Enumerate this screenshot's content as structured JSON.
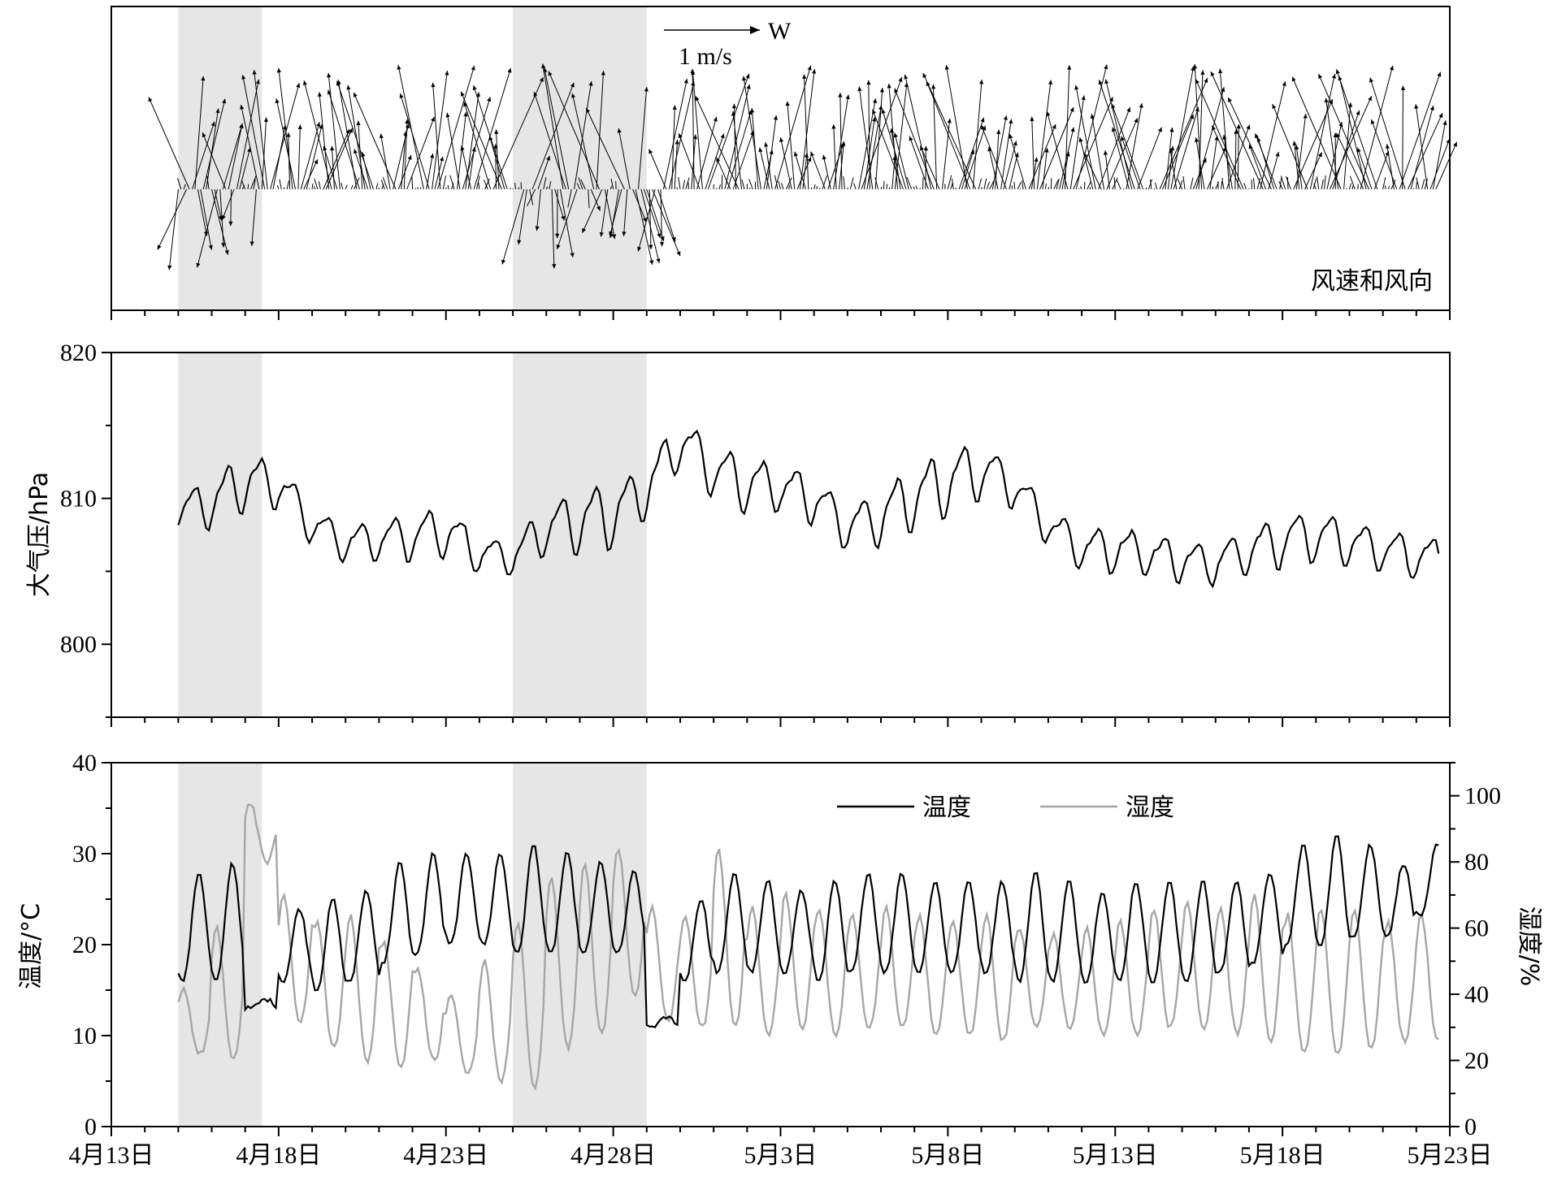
{
  "chart_data": [
    {
      "type": "quiver",
      "annotation": "风速和风向",
      "scale_label": "1 m/s",
      "direction_label": "W",
      "x_ticks": [
        "4月13日",
        "4月18日",
        "4月23日",
        "4月28日",
        "5月3日",
        "5月8日",
        "5月13日",
        "5月18日",
        "5月23日"
      ],
      "shaded_periods": [
        {
          "start": "4月15日",
          "end": "4月17.5日"
        },
        {
          "start": "4月25日",
          "end": "4月29日"
        }
      ],
      "series_note": "Hourly wind vectors from 4月15日 to 5月21日; mostly northward-pointing (southerly wind) arrows up to ~1 m/s, southward arrows mainly during 4月16–17日 and 4月27–29日."
    },
    {
      "type": "line",
      "ylabel": "大气压/hPa",
      "ylim": [
        795,
        820
      ],
      "y_ticks": [
        800,
        810,
        820
      ],
      "x_ticks": [
        "4月13日",
        "4月18日",
        "4月23日",
        "4月28日",
        "5月3日",
        "5月8日",
        "5月13日",
        "5月18日",
        "5月23日"
      ],
      "shaded_periods": [
        {
          "start": "4月15日",
          "end": "4月17.5日"
        },
        {
          "start": "4月25日",
          "end": "4月29日"
        }
      ],
      "series": [
        {
          "name": "",
          "color": "#000000",
          "daily_mean": [
            809.0,
            809.8,
            811.2,
            811.0,
            808.2,
            807.0,
            807.2,
            807.4,
            807.8,
            806.2,
            806.0,
            808.0,
            808.5,
            809.0,
            810.6,
            814.0,
            812.0,
            811.0,
            810.8,
            810.0,
            808.0,
            808.8,
            810.2,
            811.2,
            812.0,
            810.8,
            808.2,
            806.5,
            806.6,
            806.2,
            805.8,
            805.6,
            806.5,
            807.2,
            807.5,
            807.0,
            806.5,
            806.0
          ],
          "daily_amplitude": [
            1.4,
            2.0,
            2.2,
            1.8,
            1.4,
            1.4,
            1.6,
            1.8,
            2.0,
            1.4,
            1.4,
            2.0,
            2.4,
            2.6,
            2.0,
            2.0,
            2.0,
            2.2,
            1.8,
            2.0,
            1.6,
            2.2,
            2.4,
            2.6,
            2.2,
            1.6,
            1.4,
            1.6,
            1.8,
            1.6,
            1.6,
            1.6,
            1.8,
            2.0,
            2.0,
            1.8,
            1.6,
            1.6
          ]
        }
      ]
    },
    {
      "type": "line",
      "ylabel_left": "温度/°C",
      "ylabel_right": "湿度/%",
      "ylim_left": [
        0,
        40
      ],
      "ylim_right": [
        0,
        110
      ],
      "y_ticks_left": [
        0,
        10,
        20,
        30,
        40
      ],
      "y_ticks_right": [
        0,
        20,
        40,
        60,
        80,
        100
      ],
      "x_ticks": [
        "4月13日",
        "4月18日",
        "4月23日",
        "4月28日",
        "5月3日",
        "5月8日",
        "5月13日",
        "5月18日",
        "5月23日"
      ],
      "legend_placement": "top-right",
      "shaded_periods": [
        {
          "start": "4月15日",
          "end": "4月17.5日"
        },
        {
          "start": "4月25日",
          "end": "4月29日"
        }
      ],
      "series": [
        {
          "name": "温度",
          "color": "#000000",
          "axis": "left",
          "daily_max": [
            28,
            29,
            14,
            24,
            25,
            26,
            29,
            30,
            30,
            30,
            31,
            30,
            29,
            28,
            12,
            25,
            28,
            27,
            26,
            27,
            28,
            28,
            27,
            27,
            27,
            28,
            27,
            26,
            27,
            27,
            27,
            27,
            28,
            31,
            32,
            31,
            29,
            31
          ],
          "daily_min": [
            16,
            16,
            13,
            16,
            15,
            16,
            18,
            19,
            20,
            20,
            19,
            19,
            19,
            19,
            11,
            16,
            17,
            17,
            17,
            16,
            17,
            17,
            17,
            17,
            17,
            16,
            16,
            16,
            16,
            16,
            16,
            17,
            18,
            20,
            20,
            21,
            21,
            23
          ]
        },
        {
          "name": "湿度",
          "color": "#a6a6a6",
          "axis": "right",
          "daily_max": [
            42,
            60,
            98,
            70,
            62,
            64,
            56,
            48,
            40,
            50,
            62,
            76,
            80,
            84,
            66,
            64,
            84,
            66,
            70,
            66,
            64,
            66,
            64,
            62,
            64,
            60,
            58,
            60,
            62,
            66,
            68,
            66,
            70,
            64,
            66,
            66,
            62,
            64
          ],
          "daily_min": [
            22,
            20,
            80,
            32,
            24,
            20,
            18,
            20,
            16,
            14,
            12,
            24,
            28,
            40,
            32,
            30,
            30,
            28,
            30,
            28,
            30,
            30,
            28,
            28,
            26,
            30,
            30,
            28,
            28,
            30,
            30,
            28,
            26,
            22,
            22,
            24,
            26,
            26
          ]
        }
      ]
    }
  ]
}
